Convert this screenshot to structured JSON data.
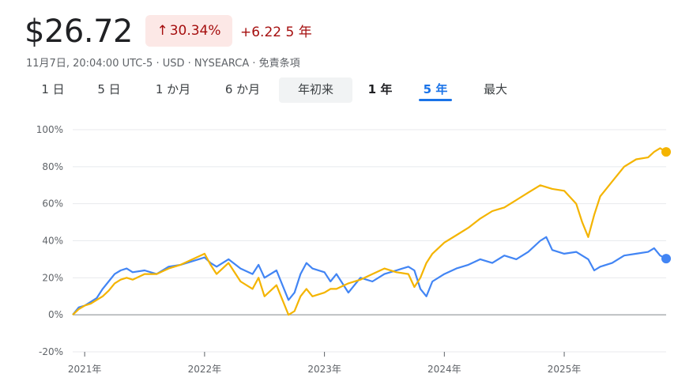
{
  "header": {
    "price": "$26.72",
    "pct_arrow": "↑",
    "pct_change": "30.34%",
    "abs_change": "+6.22",
    "period": "5 年",
    "meta": "11月7日, 20:04:00 UTC-5 · USD · NYSEARCA · 免責条項"
  },
  "tabs": [
    {
      "label": "1 日"
    },
    {
      "label": "5 日"
    },
    {
      "label": "1 か月"
    },
    {
      "label": "6 か月"
    },
    {
      "label": "年初来"
    },
    {
      "label": "1 年"
    },
    {
      "label": "5 年"
    },
    {
      "label": "最大"
    }
  ],
  "colors": {
    "series_blue": "#4285f4",
    "series_yellow": "#f4b400",
    "axis": "#5f6368",
    "grid": "#e8eaed"
  },
  "chart_data": {
    "type": "line",
    "title": "",
    "xlabel": "",
    "ylabel": "",
    "ylim": [
      -20,
      100
    ],
    "xlim": [
      2020.9,
      2025.85
    ],
    "y_ticks": [
      "100%",
      "80%",
      "60%",
      "40%",
      "20%",
      "0%",
      "-20%"
    ],
    "y_tick_values": [
      100,
      80,
      60,
      40,
      20,
      0,
      -20
    ],
    "x_ticks": [
      "2021年",
      "2022年",
      "2023年",
      "2024年",
      "2025年"
    ],
    "x_tick_values": [
      2021,
      2022,
      2023,
      2024,
      2025
    ],
    "grid": true,
    "series": [
      {
        "color": "#4285f4",
        "x": [
          2020.9,
          2020.95,
          2021.0,
          2021.05,
          2021.1,
          2021.15,
          2021.2,
          2021.25,
          2021.3,
          2021.35,
          2021.4,
          2021.5,
          2021.6,
          2021.7,
          2021.8,
          2021.9,
          2022.0,
          2022.05,
          2022.1,
          2022.2,
          2022.3,
          2022.4,
          2022.45,
          2022.5,
          2022.6,
          2022.7,
          2022.75,
          2022.8,
          2022.85,
          2022.9,
          2023.0,
          2023.05,
          2023.1,
          2023.2,
          2023.3,
          2023.4,
          2023.5,
          2023.6,
          2023.7,
          2023.75,
          2023.8,
          2023.85,
          2023.9,
          2024.0,
          2024.1,
          2024.2,
          2024.3,
          2024.4,
          2024.5,
          2024.6,
          2024.7,
          2024.8,
          2024.85,
          2024.9,
          2025.0,
          2025.1,
          2025.2,
          2025.25,
          2025.3,
          2025.4,
          2025.5,
          2025.6,
          2025.7,
          2025.75,
          2025.8,
          2025.85
        ],
        "y": [
          0,
          4,
          5,
          7,
          9,
          14,
          18,
          22,
          24,
          25,
          23,
          24,
          22,
          26,
          27,
          29,
          31,
          28,
          26,
          30,
          25,
          22,
          27,
          20,
          24,
          8,
          12,
          22,
          28,
          25,
          23,
          18,
          22,
          12,
          20,
          18,
          22,
          24,
          26,
          24,
          14,
          10,
          18,
          22,
          25,
          27,
          30,
          28,
          32,
          30,
          34,
          40,
          42,
          35,
          33,
          34,
          30,
          24,
          26,
          28,
          32,
          33,
          34,
          36,
          32,
          30.34
        ]
      },
      {
        "color": "#f4b400",
        "x": [
          2020.9,
          2020.95,
          2021.0,
          2021.05,
          2021.1,
          2021.15,
          2021.2,
          2021.25,
          2021.3,
          2021.35,
          2021.4,
          2021.5,
          2021.6,
          2021.7,
          2021.8,
          2021.9,
          2022.0,
          2022.05,
          2022.1,
          2022.2,
          2022.3,
          2022.4,
          2022.45,
          2022.5,
          2022.6,
          2022.65,
          2022.7,
          2022.75,
          2022.8,
          2022.85,
          2022.9,
          2023.0,
          2023.05,
          2023.1,
          2023.2,
          2023.3,
          2023.4,
          2023.5,
          2023.6,
          2023.7,
          2023.75,
          2023.8,
          2023.85,
          2023.9,
          2024.0,
          2024.1,
          2024.2,
          2024.3,
          2024.4,
          2024.5,
          2024.6,
          2024.7,
          2024.8,
          2024.9,
          2025.0,
          2025.1,
          2025.15,
          2025.2,
          2025.25,
          2025.3,
          2025.4,
          2025.5,
          2025.6,
          2025.7,
          2025.75,
          2025.8,
          2025.85
        ],
        "y": [
          0,
          3,
          5,
          6,
          8,
          10,
          13,
          17,
          19,
          20,
          19,
          22,
          22,
          25,
          27,
          30,
          33,
          27,
          22,
          28,
          18,
          14,
          20,
          10,
          16,
          8,
          0,
          2,
          10,
          14,
          10,
          12,
          14,
          14,
          17,
          19,
          22,
          25,
          23,
          22,
          15,
          20,
          28,
          33,
          39,
          43,
          47,
          52,
          56,
          58,
          62,
          66,
          70,
          68,
          67,
          60,
          50,
          42,
          54,
          64,
          72,
          80,
          84,
          85,
          88,
          90,
          88
        ]
      }
    ]
  }
}
